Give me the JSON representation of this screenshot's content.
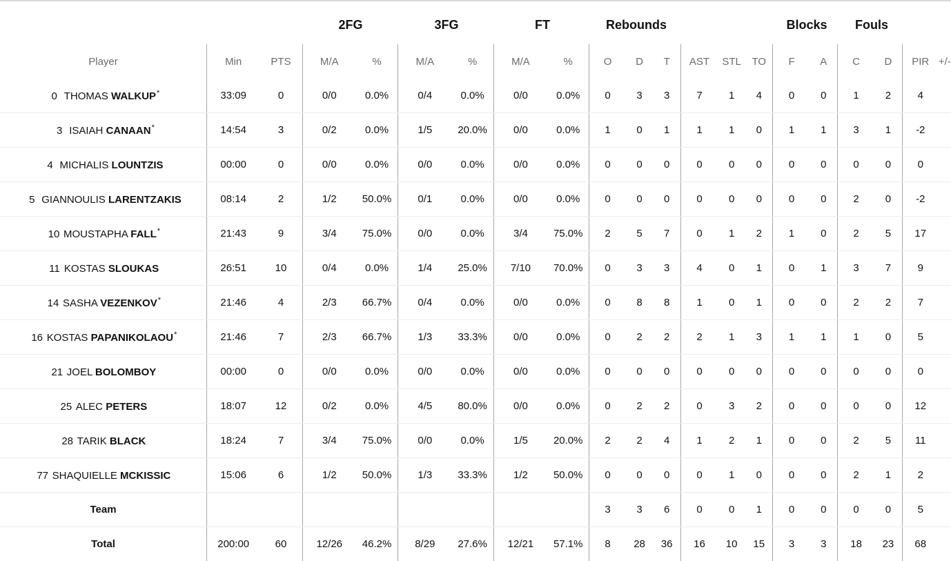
{
  "groups": {
    "fg2": "2FG",
    "fg3": "3FG",
    "ft": "FT",
    "rebounds": "Rebounds",
    "blocks": "Blocks",
    "fouls": "Fouls"
  },
  "columns": [
    "Player",
    "Min",
    "PTS",
    "M/A",
    "%",
    "M/A",
    "%",
    "M/A",
    "%",
    "O",
    "D",
    "T",
    "AST",
    "STL",
    "TO",
    "F",
    "A",
    "C",
    "D",
    "PIR",
    "+/-"
  ],
  "players": [
    {
      "num": "0",
      "first": "THOMAS",
      "last": "WALKUP",
      "starter": "*",
      "stats": [
        "33:09",
        "0",
        "0/0",
        "0.0%",
        "0/4",
        "0.0%",
        "0/0",
        "0.0%",
        "0",
        "3",
        "3",
        "7",
        "1",
        "4",
        "0",
        "0",
        "1",
        "2",
        "4",
        ""
      ]
    },
    {
      "num": "3",
      "first": "ISAIAH",
      "last": "CANAAN",
      "starter": "*",
      "stats": [
        "14:54",
        "3",
        "0/2",
        "0.0%",
        "1/5",
        "20.0%",
        "0/0",
        "0.0%",
        "1",
        "0",
        "1",
        "1",
        "1",
        "0",
        "1",
        "1",
        "3",
        "1",
        "-2",
        ""
      ]
    },
    {
      "num": "4",
      "first": "MICHALIS",
      "last": "LOUNTZIS",
      "starter": "",
      "stats": [
        "00:00",
        "0",
        "0/0",
        "0.0%",
        "0/0",
        "0.0%",
        "0/0",
        "0.0%",
        "0",
        "0",
        "0",
        "0",
        "0",
        "0",
        "0",
        "0",
        "0",
        "0",
        "0",
        ""
      ]
    },
    {
      "num": "5",
      "first": "GIANNOULIS",
      "last": "LARENTZAKIS",
      "starter": "",
      "stats": [
        "08:14",
        "2",
        "1/2",
        "50.0%",
        "0/1",
        "0.0%",
        "0/0",
        "0.0%",
        "0",
        "0",
        "0",
        "0",
        "0",
        "0",
        "0",
        "0",
        "2",
        "0",
        "-2",
        ""
      ]
    },
    {
      "num": "10",
      "first": "MOUSTAPHA",
      "last": "FALL",
      "starter": "*",
      "stats": [
        "21:43",
        "9",
        "3/4",
        "75.0%",
        "0/0",
        "0.0%",
        "3/4",
        "75.0%",
        "2",
        "5",
        "7",
        "0",
        "1",
        "2",
        "1",
        "0",
        "2",
        "5",
        "17",
        ""
      ]
    },
    {
      "num": "11",
      "first": "KOSTAS",
      "last": "SLOUKAS",
      "starter": "",
      "stats": [
        "26:51",
        "10",
        "0/4",
        "0.0%",
        "1/4",
        "25.0%",
        "7/10",
        "70.0%",
        "0",
        "3",
        "3",
        "4",
        "0",
        "1",
        "0",
        "1",
        "3",
        "7",
        "9",
        ""
      ]
    },
    {
      "num": "14",
      "first": "SASHA",
      "last": "VEZENKOV",
      "starter": "*",
      "stats": [
        "21:46",
        "4",
        "2/3",
        "66.7%",
        "0/4",
        "0.0%",
        "0/0",
        "0.0%",
        "0",
        "8",
        "8",
        "1",
        "0",
        "1",
        "0",
        "0",
        "2",
        "2",
        "7",
        ""
      ]
    },
    {
      "num": "16",
      "first": "KOSTAS",
      "last": "PAPANIKOLAOU",
      "starter": "*",
      "stats": [
        "21:46",
        "7",
        "2/3",
        "66.7%",
        "1/3",
        "33.3%",
        "0/0",
        "0.0%",
        "0",
        "2",
        "2",
        "2",
        "1",
        "3",
        "1",
        "1",
        "1",
        "0",
        "5",
        ""
      ]
    },
    {
      "num": "21",
      "first": "JOEL",
      "last": "BOLOMBOY",
      "starter": "",
      "stats": [
        "00:00",
        "0",
        "0/0",
        "0.0%",
        "0/0",
        "0.0%",
        "0/0",
        "0.0%",
        "0",
        "0",
        "0",
        "0",
        "0",
        "0",
        "0",
        "0",
        "0",
        "0",
        "0",
        ""
      ]
    },
    {
      "num": "25",
      "first": "ALEC",
      "last": "PETERS",
      "starter": "",
      "stats": [
        "18:07",
        "12",
        "0/2",
        "0.0%",
        "4/5",
        "80.0%",
        "0/0",
        "0.0%",
        "0",
        "2",
        "2",
        "0",
        "3",
        "2",
        "0",
        "0",
        "0",
        "0",
        "12",
        ""
      ]
    },
    {
      "num": "28",
      "first": "TARIK",
      "last": "BLACK",
      "starter": "",
      "stats": [
        "18:24",
        "7",
        "3/4",
        "75.0%",
        "0/0",
        "0.0%",
        "1/5",
        "20.0%",
        "2",
        "2",
        "4",
        "1",
        "2",
        "1",
        "0",
        "0",
        "2",
        "5",
        "11",
        ""
      ]
    },
    {
      "num": "77",
      "first": "SHAQUIELLE",
      "last": "MCKISSIC",
      "starter": "",
      "stats": [
        "15:06",
        "6",
        "1/2",
        "50.0%",
        "1/3",
        "33.3%",
        "1/2",
        "50.0%",
        "0",
        "0",
        "0",
        "0",
        "1",
        "0",
        "0",
        "0",
        "2",
        "1",
        "2",
        ""
      ]
    }
  ],
  "team": {
    "label": "Team",
    "stats": [
      "",
      "",
      "",
      "",
      "",
      "",
      "",
      "",
      "3",
      "3",
      "6",
      "0",
      "0",
      "1",
      "0",
      "0",
      "0",
      "0",
      "5",
      ""
    ]
  },
  "total": {
    "label": "Total",
    "stats": [
      "200:00",
      "60",
      "12/26",
      "46.2%",
      "8/29",
      "27.6%",
      "12/21",
      "57.1%",
      "8",
      "28",
      "36",
      "16",
      "10",
      "15",
      "3",
      "3",
      "18",
      "23",
      "68",
      ""
    ]
  }
}
